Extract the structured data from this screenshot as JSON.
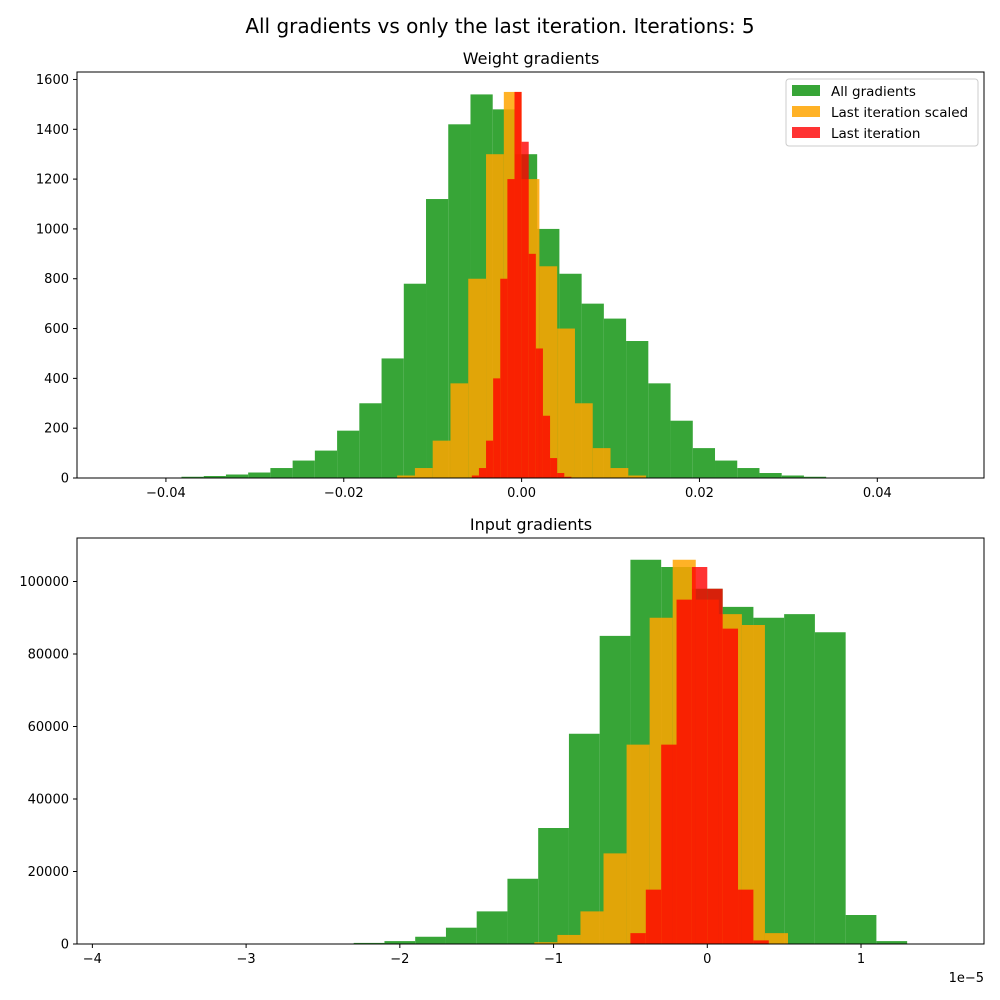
{
  "suptitle": "All gradients vs only the last iteration. Iterations: 5",
  "colors": {
    "all": "#2ca02c",
    "scaled": "#ffa500",
    "last": "#ff0000"
  },
  "chart_data": [
    {
      "type": "bar",
      "title": "Weight gradients",
      "xlabel": "",
      "ylabel": "",
      "xlim": [
        -0.05,
        0.052
      ],
      "ylim": [
        0,
        1630
      ],
      "xticks": [
        -0.04,
        -0.02,
        0.0,
        0.02,
        0.04
      ],
      "xticklabels": [
        "−0.04",
        "−0.02",
        "0.00",
        "0.02",
        "0.04"
      ],
      "yticks": [
        0,
        200,
        400,
        600,
        800,
        1000,
        1200,
        1400,
        1600
      ],
      "yticklabels": [
        "0",
        "200",
        "400",
        "600",
        "800",
        "1000",
        "1200",
        "1400",
        "1600"
      ],
      "offset_text": "",
      "legend_position": "upper right",
      "grid": false,
      "series": [
        {
          "name": "All gradients",
          "color": "#2ca02c",
          "alpha": 0.95,
          "x": [
            -0.037,
            -0.0345,
            -0.032,
            -0.0295,
            -0.027,
            -0.0245,
            -0.022,
            -0.0195,
            -0.017,
            -0.0145,
            -0.012,
            -0.0095,
            -0.007,
            -0.0045,
            -0.002,
            0.0005,
            0.003,
            0.0055,
            0.008,
            0.0105,
            0.013,
            0.0155,
            0.018,
            0.0205,
            0.023,
            0.0255,
            0.028,
            0.0305,
            0.033
          ],
          "y": [
            5,
            8,
            14,
            22,
            40,
            70,
            110,
            190,
            300,
            480,
            780,
            1120,
            1420,
            1540,
            1480,
            1300,
            1000,
            820,
            700,
            640,
            550,
            380,
            230,
            120,
            70,
            40,
            20,
            10,
            5
          ]
        },
        {
          "name": "Last iteration scaled",
          "color": "#ffa500",
          "alpha": 0.85,
          "x": [
            -0.013,
            -0.011,
            -0.009,
            -0.007,
            -0.005,
            -0.003,
            -0.001,
            0.001,
            0.003,
            0.005,
            0.007,
            0.009,
            0.011,
            0.013
          ],
          "y": [
            10,
            40,
            150,
            380,
            800,
            1300,
            1550,
            1200,
            850,
            600,
            300,
            120,
            40,
            10
          ]
        },
        {
          "name": "Last iteration",
          "color": "#ff0000",
          "alpha": 0.8,
          "x": [
            -0.0052,
            -0.0044,
            -0.0036,
            -0.0028,
            -0.002,
            -0.0012,
            -0.0004,
            0.0004,
            0.0012,
            0.002,
            0.0028,
            0.0036,
            0.0044,
            0.0052
          ],
          "y": [
            10,
            40,
            150,
            400,
            800,
            1200,
            1550,
            1350,
            900,
            520,
            250,
            80,
            20,
            5
          ]
        }
      ]
    },
    {
      "type": "bar",
      "title": "Input gradients",
      "xlabel": "",
      "ylabel": "",
      "xlim": [
        -4.1,
        1.8
      ],
      "ylim": [
        0,
        112000
      ],
      "xticks": [
        -4,
        -3,
        -2,
        -1,
        0,
        1
      ],
      "xticklabels": [
        "−4",
        "−3",
        "−2",
        "−1",
        "0",
        "1"
      ],
      "yticks": [
        0,
        20000,
        40000,
        60000,
        80000,
        100000
      ],
      "yticklabels": [
        "0",
        "20000",
        "40000",
        "60000",
        "80000",
        "100000"
      ],
      "offset_text": "1e−5",
      "legend_position": "",
      "grid": false,
      "series": [
        {
          "name": "All gradients",
          "color": "#2ca02c",
          "alpha": 0.95,
          "x": [
            -2.2,
            -2.0,
            -1.8,
            -1.6,
            -1.4,
            -1.2,
            -1.0,
            -0.8,
            -0.6,
            -0.4,
            -0.2,
            0.0,
            0.2,
            0.4,
            0.6,
            0.8,
            1.0,
            1.2
          ],
          "y": [
            300,
            800,
            2000,
            4500,
            9000,
            18000,
            32000,
            58000,
            85000,
            106000,
            104000,
            98000,
            93000,
            90000,
            91000,
            86000,
            8000,
            800
          ]
        },
        {
          "name": "Last iteration scaled",
          "color": "#ffa500",
          "alpha": 0.85,
          "x": [
            -1.05,
            -0.9,
            -0.75,
            -0.6,
            -0.45,
            -0.3,
            -0.15,
            0.0,
            0.15,
            0.3,
            0.45
          ],
          "y": [
            500,
            2500,
            9000,
            25000,
            55000,
            90000,
            106000,
            95000,
            91000,
            88000,
            3000
          ]
        },
        {
          "name": "Last iteration",
          "color": "#ff0000",
          "alpha": 0.8,
          "x": [
            -0.45,
            -0.35,
            -0.25,
            -0.15,
            -0.05,
            0.05,
            0.15,
            0.25,
            0.35
          ],
          "y": [
            3000,
            15000,
            55000,
            95000,
            104000,
            98000,
            87000,
            15000,
            1000
          ]
        }
      ]
    }
  ]
}
